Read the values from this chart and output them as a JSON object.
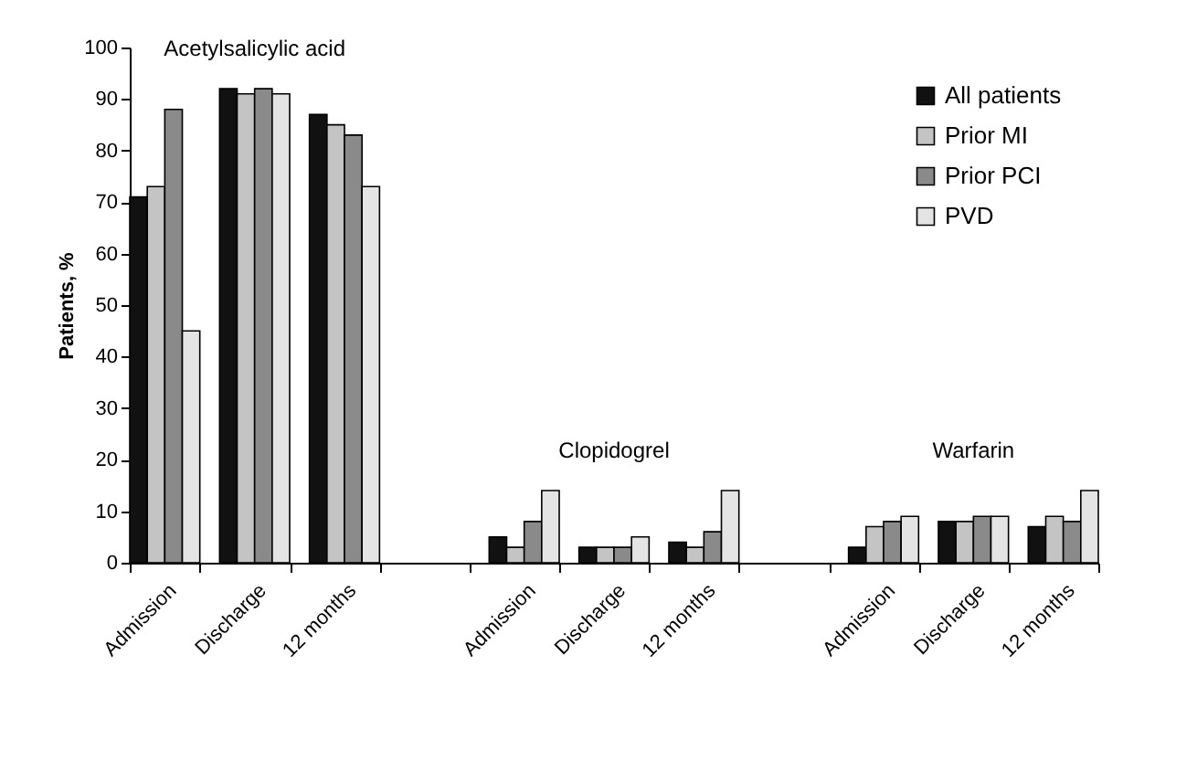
{
  "chart_data": {
    "type": "bar",
    "ylabel": "Patients, %",
    "ylim": [
      0,
      100
    ],
    "yticks": [
      0,
      10,
      20,
      30,
      40,
      50,
      60,
      70,
      80,
      90,
      100
    ],
    "grid": false,
    "legend": "top right",
    "categories": [
      "Admission",
      "Discharge",
      "12 months",
      null,
      "Admission",
      "Discharge",
      "12 months",
      null,
      "Admission",
      "Discharge",
      "12 months"
    ],
    "series": [
      {
        "name": "All patients",
        "color": "#111111",
        "values": [
          71,
          92,
          87,
          null,
          5,
          3,
          4,
          null,
          3,
          8,
          7
        ]
      },
      {
        "name": "Prior MI",
        "color": "#c4c4c4",
        "values": [
          73,
          91,
          85,
          null,
          3,
          3,
          3,
          null,
          7,
          8,
          9
        ]
      },
      {
        "name": "Prior PCI",
        "color": "#8a8a8a",
        "values": [
          88,
          92,
          83,
          null,
          8,
          3,
          6,
          null,
          8,
          9,
          8
        ]
      },
      {
        "name": "PVD",
        "color": "#e4e4e4",
        "values": [
          45,
          91,
          73,
          null,
          14,
          5,
          14,
          null,
          9,
          9,
          14
        ]
      }
    ],
    "annotations": [
      "Acetylsalicylic acid",
      "Clopidogrel",
      "Warfarin"
    ]
  }
}
